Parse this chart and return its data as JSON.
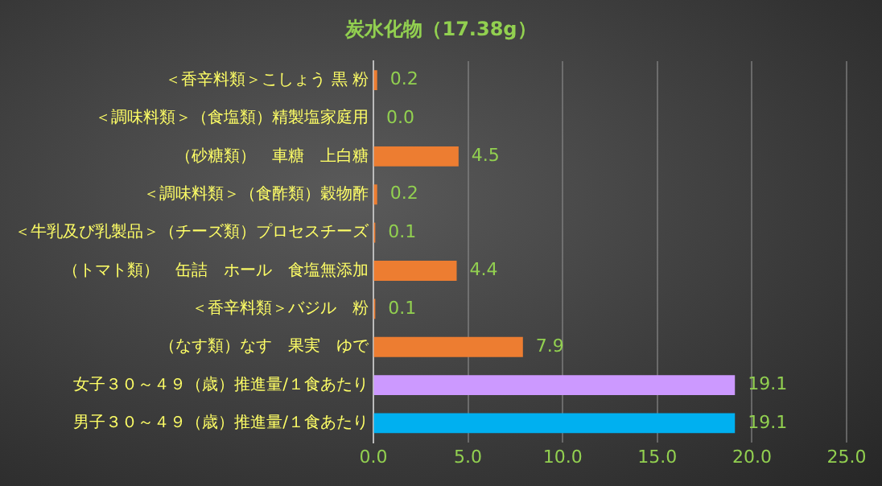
{
  "chart_data": {
    "type": "bar",
    "orientation": "horizontal",
    "title": "炭水化物（17.38g）",
    "categories": [
      "＜香辛料類＞こしょう 黒 粉",
      "＜調味料類＞（食塩類）精製塩家庭用",
      "（砂糖類）　車糖　上白糖",
      "＜調味料類＞（食酢類）穀物酢",
      "＜牛乳及び乳製品＞（チーズ類）プロセスチーズ",
      "（トマト類）　缶詰　ホール　食塩無添加",
      "＜香辛料類＞バジル　粉",
      "（なす類）なす　果実　ゆで",
      "女子３０～４９（歳）推進量/１食あたり",
      "男子３０～４９（歳）推進量/１食あたり"
    ],
    "values": [
      0.2,
      0.0,
      4.5,
      0.2,
      0.1,
      4.4,
      0.1,
      7.9,
      19.1,
      19.1
    ],
    "colors": [
      "#ed7d31",
      "#ed7d31",
      "#ed7d31",
      "#ed7d31",
      "#ed7d31",
      "#ed7d31",
      "#ed7d31",
      "#ed7d31",
      "#cc99ff",
      "#00b0f0"
    ],
    "value_labels": [
      "0.2",
      "0.0",
      "4.5",
      "0.2",
      "0.1",
      "4.4",
      "0.1",
      "7.9",
      "19.1",
      "19.1"
    ],
    "xlim": [
      0,
      25
    ],
    "xticks": [
      {
        "value": 0,
        "label": "0.0"
      },
      {
        "value": 5,
        "label": "5.0"
      },
      {
        "value": 10,
        "label": "10.0"
      },
      {
        "value": 15,
        "label": "15.0"
      },
      {
        "value": 20,
        "label": "20.0"
      },
      {
        "value": 25,
        "label": "25.0"
      }
    ],
    "grid": "x",
    "legend": false
  }
}
